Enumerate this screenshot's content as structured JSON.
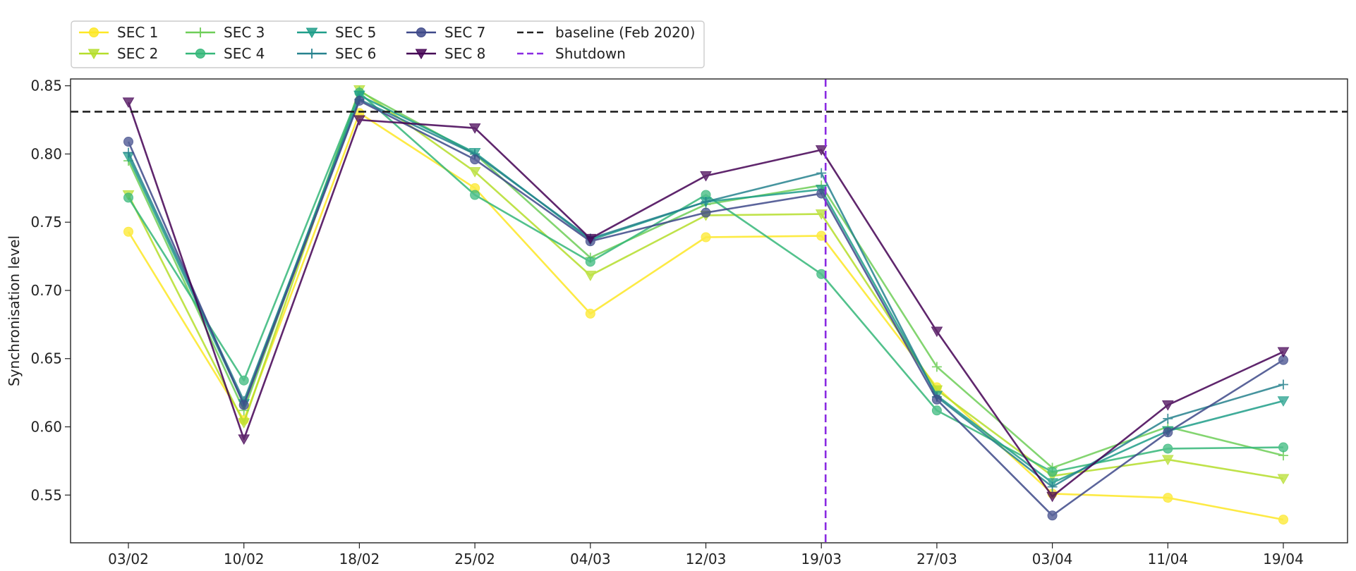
{
  "chart_data": {
    "type": "line",
    "title": "",
    "xlabel": "",
    "ylabel": "Synchronisation level",
    "categories": [
      "03/02",
      "10/02",
      "18/02",
      "25/02",
      "04/03",
      "12/03",
      "19/03",
      "27/03",
      "03/04",
      "11/04",
      "19/04"
    ],
    "ylim": [
      0.515,
      0.855
    ],
    "yticks": [
      "0.55",
      "0.60",
      "0.65",
      "0.70",
      "0.75",
      "0.80",
      "0.85"
    ],
    "grid": false,
    "legend_position": "top-left, above plot",
    "series": [
      {
        "name": "SEC 1",
        "marker": "circle",
        "color": "#fde725",
        "values": [
          0.743,
          0.605,
          0.83,
          0.775,
          0.683,
          0.739,
          0.74,
          0.629,
          0.551,
          0.548,
          0.532
        ]
      },
      {
        "name": "SEC 2",
        "marker": "triangle-down",
        "color": "#b5de2b",
        "values": [
          0.77,
          0.603,
          0.847,
          0.787,
          0.711,
          0.755,
          0.756,
          0.627,
          0.564,
          0.576,
          0.562
        ]
      },
      {
        "name": "SEC 3",
        "marker": "plus",
        "color": "#6ece58",
        "values": [
          0.795,
          0.612,
          0.846,
          0.8,
          0.724,
          0.763,
          0.777,
          0.644,
          0.57,
          0.6,
          0.579
        ]
      },
      {
        "name": "SEC 4",
        "marker": "circle",
        "color": "#35b779",
        "values": [
          0.768,
          0.634,
          0.845,
          0.77,
          0.721,
          0.77,
          0.712,
          0.612,
          0.567,
          0.584,
          0.585
        ]
      },
      {
        "name": "SEC 5",
        "marker": "triangle-down",
        "color": "#1f9e89",
        "values": [
          0.798,
          0.617,
          0.843,
          0.801,
          0.737,
          0.765,
          0.774,
          0.623,
          0.559,
          0.597,
          0.619
        ]
      },
      {
        "name": "SEC 6",
        "marker": "plus",
        "color": "#26828e",
        "values": [
          0.801,
          0.619,
          0.84,
          0.8,
          0.738,
          0.765,
          0.786,
          0.622,
          0.556,
          0.606,
          0.631
        ]
      },
      {
        "name": "SEC 7",
        "marker": "circle",
        "color": "#3e4989",
        "values": [
          0.809,
          0.616,
          0.839,
          0.796,
          0.736,
          0.757,
          0.771,
          0.62,
          0.535,
          0.596,
          0.649
        ]
      },
      {
        "name": "SEC 8",
        "marker": "triangle-down",
        "color": "#440154",
        "values": [
          0.838,
          0.591,
          0.825,
          0.819,
          0.738,
          0.784,
          0.803,
          0.67,
          0.549,
          0.616,
          0.655
        ]
      }
    ],
    "reference_lines": [
      {
        "name": "baseline (Feb 2020)",
        "orientation": "horizontal",
        "value": 0.831,
        "style": "dashed",
        "color": "#222222"
      },
      {
        "name": "Shutdown",
        "orientation": "vertical",
        "value": "19/03",
        "style": "dashed",
        "color": "#8a2be2"
      }
    ]
  }
}
